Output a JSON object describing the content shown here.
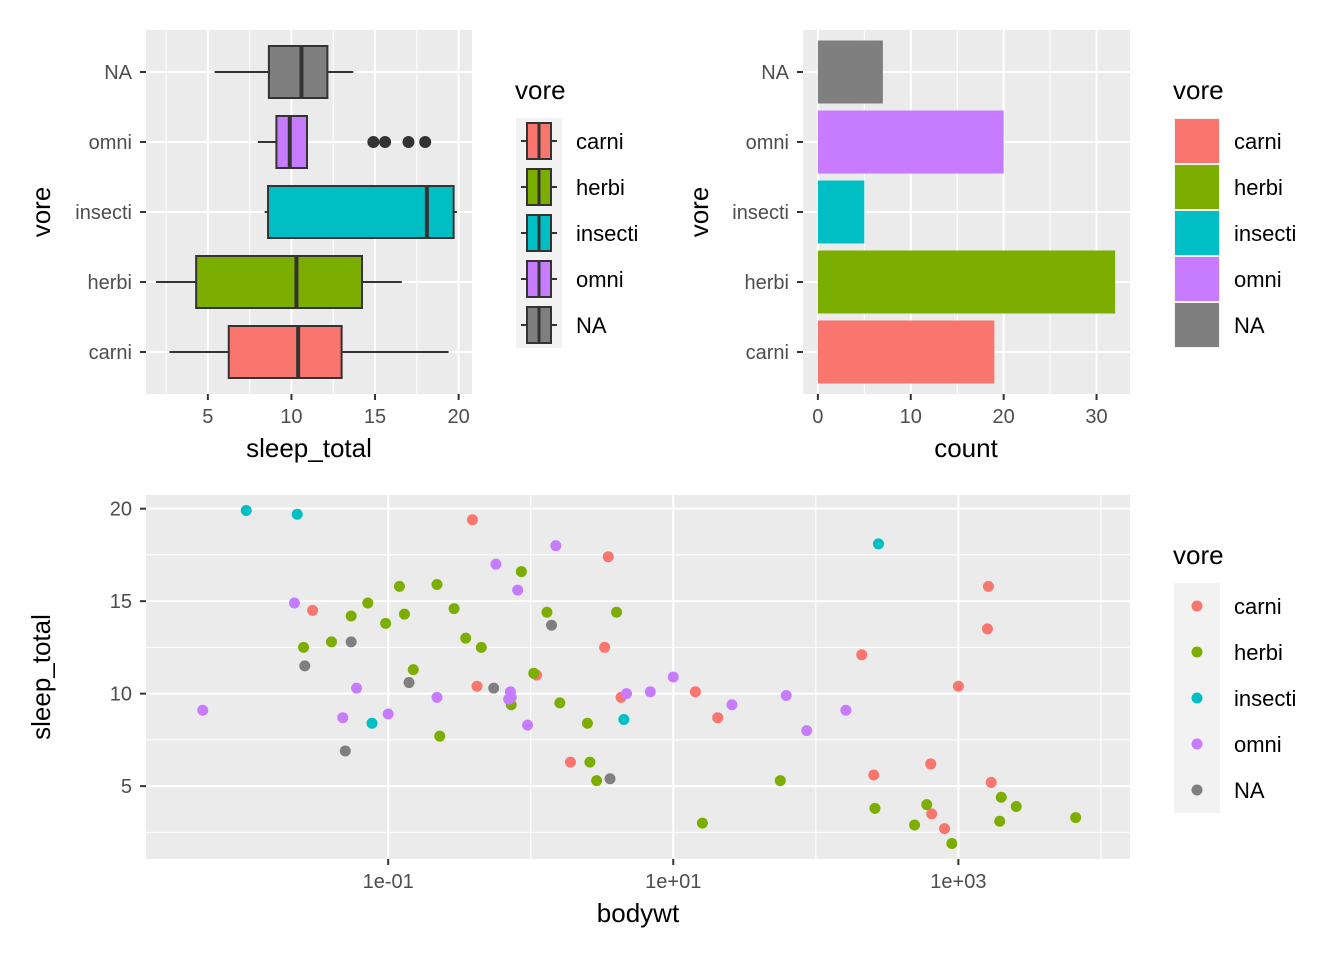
{
  "colors": {
    "carni": "#F8766D",
    "herbi": "#7CAE00",
    "insecti": "#00BFC4",
    "omni": "#C77CFF",
    "NA": "#7F7F7F",
    "panel_bg": "#EBEBEB",
    "grid": "#FFFFFF"
  },
  "legend": {
    "title": "vore",
    "labels": [
      "carni",
      "herbi",
      "insecti",
      "omni",
      "NA"
    ]
  },
  "chart_data": [
    {
      "type": "boxplot",
      "orientation": "horizontal",
      "xlabel": "sleep_total",
      "ylabel": "vore",
      "categories": [
        "carni",
        "herbi",
        "insecti",
        "omni",
        "NA"
      ],
      "xlim": [
        1.3,
        20.8
      ],
      "xticks": [
        5,
        10,
        15,
        20
      ],
      "boxes": [
        {
          "group": "carni",
          "whisker_low": 2.7,
          "q1": 6.25,
          "median": 10.4,
          "q3": 13.0,
          "whisker_high": 19.4,
          "outliers": []
        },
        {
          "group": "herbi",
          "whisker_low": 1.9,
          "q1": 4.3,
          "median": 10.3,
          "q3": 14.22,
          "whisker_high": 16.6,
          "outliers": []
        },
        {
          "group": "insecti",
          "whisker_low": 8.4,
          "q1": 8.6,
          "median": 18.1,
          "q3": 19.7,
          "whisker_high": 19.9,
          "outliers": []
        },
        {
          "group": "omni",
          "whisker_low": 8.0,
          "q1": 9.1,
          "median": 9.9,
          "q3": 10.93,
          "whisker_high": 10.93,
          "outliers": [
            14.9,
            15.6,
            17.0,
            18.0
          ]
        },
        {
          "group": "NA",
          "whisker_low": 5.4,
          "q1": 8.65,
          "median": 10.6,
          "q3": 12.15,
          "whisker_high": 13.7,
          "outliers": []
        }
      ]
    },
    {
      "type": "bar",
      "orientation": "horizontal",
      "xlabel": "count",
      "ylabel": "vore",
      "categories": [
        "carni",
        "herbi",
        "insecti",
        "omni",
        "NA"
      ],
      "values": [
        19,
        32,
        5,
        20,
        7
      ],
      "xlim": [
        -1.6,
        33.6
      ],
      "xticks": [
        0,
        10,
        20,
        30
      ]
    },
    {
      "type": "scatter",
      "xlabel": "bodywt",
      "ylabel": "sleep_total",
      "x_scale": "log10",
      "xlim": [
        0.002,
        16000
      ],
      "ylim": [
        1.06,
        20.74
      ],
      "xticks": [
        0.1,
        10,
        1000
      ],
      "xtick_labels": [
        "1e-01",
        "1e+01",
        "1e+03"
      ],
      "yticks": [
        5,
        10,
        15,
        20
      ],
      "series": [
        {
          "name": "carni",
          "points": [
            [
              0.0295,
              14.5
            ],
            [
              0.39,
              19.4
            ],
            [
              1.1,
              11.0
            ],
            [
              0.42,
              10.4
            ],
            [
              3.5,
              17.4
            ],
            [
              3.3,
              12.5
            ],
            [
              4.3,
              9.8
            ],
            [
              1.9,
              6.3
            ],
            [
              14.3,
              10.1
            ],
            [
              20.5,
              8.7
            ],
            [
              255,
              5.6
            ],
            [
              640,
              6.2
            ],
            [
              650,
              3.5
            ],
            [
              1000,
              10.4
            ],
            [
              1600,
              13.5
            ],
            [
              1625,
              15.8
            ],
            [
              1700,
              5.2
            ],
            [
              800,
              2.7
            ],
            [
              210,
              12.1
            ]
          ]
        },
        {
          "name": "herbi",
          "points": [
            [
              0.0255,
              12.5
            ],
            [
              0.04,
              12.8
            ],
            [
              0.055,
              14.2
            ],
            [
              0.072,
              14.9
            ],
            [
              0.096,
              13.8
            ],
            [
              0.12,
              15.8
            ],
            [
              0.13,
              14.3
            ],
            [
              0.15,
              11.3
            ],
            [
              0.22,
              15.9
            ],
            [
              0.23,
              7.7
            ],
            [
              0.29,
              14.6
            ],
            [
              0.35,
              13.0
            ],
            [
              0.45,
              12.5
            ],
            [
              0.73,
              9.4
            ],
            [
              0.86,
              16.6
            ],
            [
              1.05,
              11.1
            ],
            [
              1.3,
              14.4
            ],
            [
              1.6,
              9.5
            ],
            [
              2.5,
              8.4
            ],
            [
              2.6,
              6.3
            ],
            [
              2.9,
              5.3
            ],
            [
              4.0,
              14.4
            ],
            [
              16.0,
              3.0
            ],
            [
              56.3,
              5.3
            ],
            [
              260,
              3.8
            ],
            [
              1950,
              3.1
            ],
            [
              2000,
              4.4
            ],
            [
              493,
              2.9
            ],
            [
              600,
              4.0
            ],
            [
              6654,
              3.3
            ],
            [
              2547,
              3.9
            ],
            [
              900,
              1.9
            ]
          ]
        },
        {
          "name": "insecti",
          "points": [
            [
              0.0101,
              19.9
            ],
            [
              0.023,
              19.7
            ],
            [
              0.077,
              8.4
            ],
            [
              4.5,
              8.6
            ],
            [
              275,
              18.1
            ]
          ]
        },
        {
          "name": "omni",
          "points": [
            [
              0.005,
              9.1
            ],
            [
              0.022,
              14.9
            ],
            [
              0.048,
              8.7
            ],
            [
              0.06,
              10.3
            ],
            [
              0.1,
              8.9
            ],
            [
              0.22,
              9.8
            ],
            [
              0.57,
              17.0
            ],
            [
              0.81,
              15.6
            ],
            [
              0.95,
              8.3
            ],
            [
              0.72,
              10.1
            ],
            [
              1.5,
              18.0
            ],
            [
              4.7,
              10.0
            ],
            [
              6.9,
              10.1
            ],
            [
              10.0,
              10.9
            ],
            [
              25.8,
              9.4
            ],
            [
              62.0,
              9.9
            ],
            [
              86.3,
              8.0
            ],
            [
              162.5,
              9.1
            ],
            [
              0.7,
              9.7
            ],
            [
              0.73,
              9.8
            ]
          ]
        },
        {
          "name": "NA",
          "points": [
            [
              0.026,
              11.5
            ],
            [
              0.05,
              6.9
            ],
            [
              0.055,
              12.8
            ],
            [
              0.14,
              10.6
            ],
            [
              0.55,
              10.3
            ],
            [
              1.4,
              13.7
            ],
            [
              3.6,
              5.4
            ]
          ]
        }
      ]
    }
  ]
}
